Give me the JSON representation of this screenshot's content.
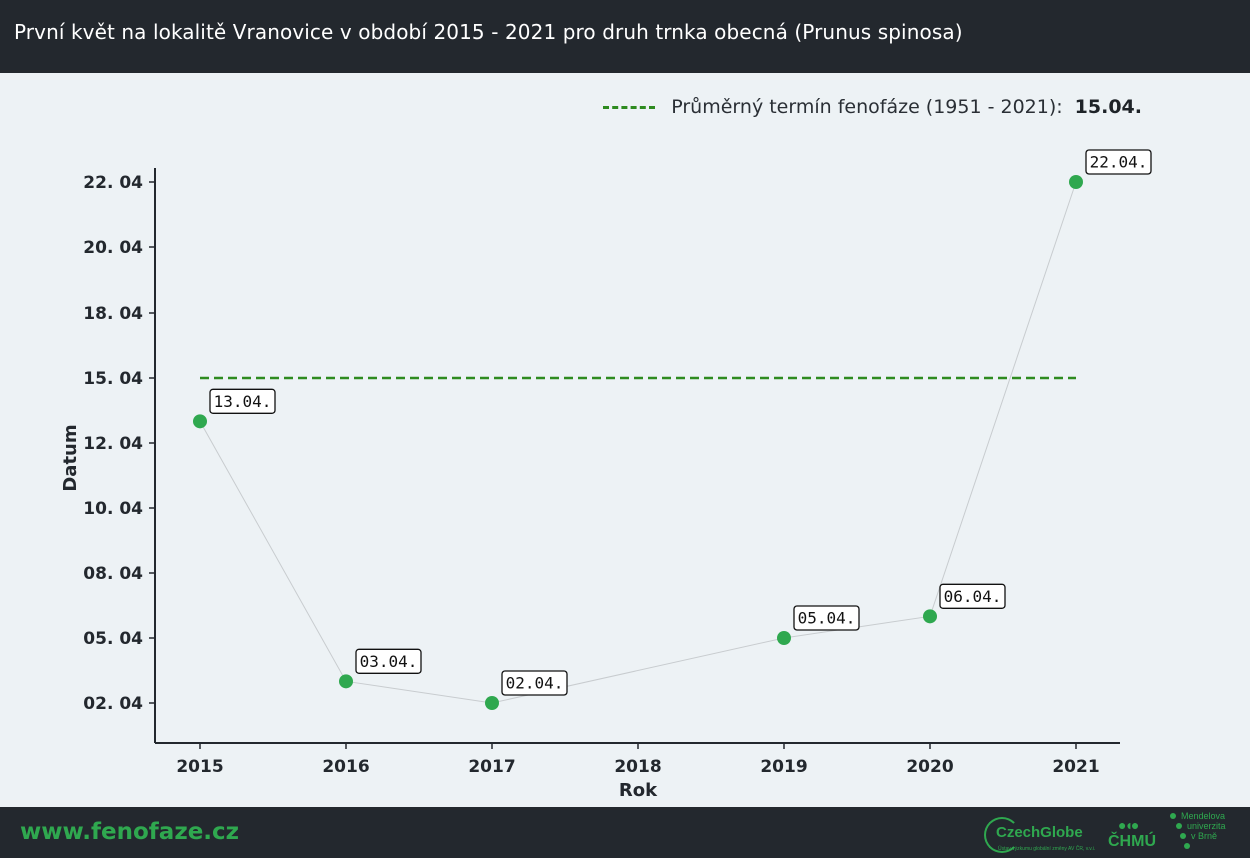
{
  "header": {
    "title": "První květ na lokalitě Vranovice v období 2015 - 2021 pro druh trnka obecná (Prunus spinosa)"
  },
  "legend": {
    "label": "Průměrný termín fenofáze (1951 - 2021):",
    "value": "15.04."
  },
  "footer": {
    "site": "www.fenofaze.cz",
    "logo_czechglobe": "CzechGlobe",
    "logo_czechglobe_sub": "Ústav výzkumu globální změny AV ČR, v.v.i.",
    "logo_chmu": "ČHMÚ",
    "logo_mendel_1": "Mendelova",
    "logo_mendel_2": "univerzita",
    "logo_mendel_3": "v Brně"
  },
  "colors": {
    "point": "#2fa84f",
    "reference": "#2e8b1f",
    "connector": "#c8cccf",
    "header_bg": "#23282e",
    "plot_bg": "#edf2f5"
  },
  "chart_data": {
    "type": "scatter",
    "title": "První květ na lokalitě Vranovice v období 2015 - 2021 pro druh trnka obecná (Prunus spinosa)",
    "xlabel": "Rok",
    "ylabel": "Datum",
    "x_ticks": [
      "2015",
      "2016",
      "2017",
      "2018",
      "2019",
      "2020",
      "2021"
    ],
    "y_ticks": [
      "02. 04",
      "05. 04",
      "08. 04",
      "10. 04",
      "12. 04",
      "15. 04",
      "18. 04",
      "20. 04",
      "22. 04"
    ],
    "points": [
      {
        "year": 2015,
        "label": "13.04."
      },
      {
        "year": 2016,
        "label": "03.04."
      },
      {
        "year": 2017,
        "label": "02.04."
      },
      {
        "year": 2019,
        "label": "05.04."
      },
      {
        "year": 2020,
        "label": "06.04."
      },
      {
        "year": 2021,
        "label": "22.04."
      }
    ],
    "reference": {
      "label": "Průměrný termín fenofáze (1951 - 2021)",
      "value": "15.04.",
      "x_range": [
        2015,
        2021
      ]
    },
    "grid": false,
    "legend_position": "top-right"
  }
}
